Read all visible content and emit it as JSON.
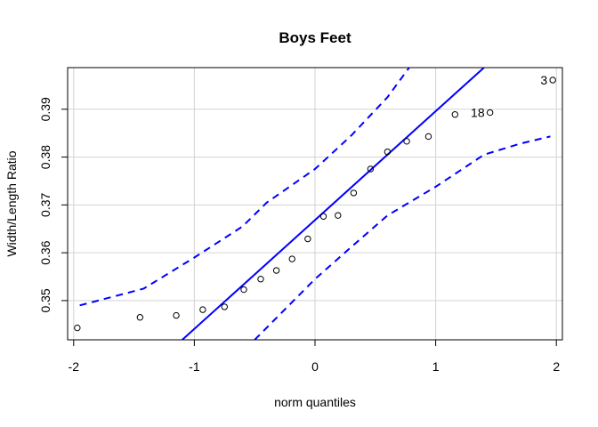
{
  "chart_data": {
    "type": "scatter",
    "title": "Boys Feet",
    "xlabel": "norm quantiles",
    "ylabel": "Width/Length Ratio",
    "xlim": [
      -2.05,
      2.05
    ],
    "ylim": [
      0.3418,
      0.3987
    ],
    "xticks": [
      -2,
      -1,
      0,
      1,
      2
    ],
    "xtick_labels": [
      "-2",
      "-1",
      "0",
      "1",
      "2"
    ],
    "yticks": [
      0.35,
      0.36,
      0.37,
      0.38,
      0.39
    ],
    "ytick_labels": [
      "0.35",
      "0.36",
      "0.37",
      "0.38",
      "0.39"
    ],
    "grid": true,
    "points": [
      {
        "x": -1.97,
        "y": 0.3443
      },
      {
        "x": -1.45,
        "y": 0.3465
      },
      {
        "x": -1.15,
        "y": 0.3469
      },
      {
        "x": -0.93,
        "y": 0.3481
      },
      {
        "x": -0.75,
        "y": 0.3487
      },
      {
        "x": -0.59,
        "y": 0.3523
      },
      {
        "x": -0.45,
        "y": 0.3545
      },
      {
        "x": -0.32,
        "y": 0.3563
      },
      {
        "x": -0.19,
        "y": 0.3587
      },
      {
        "x": -0.06,
        "y": 0.3629
      },
      {
        "x": 0.07,
        "y": 0.3676
      },
      {
        "x": 0.19,
        "y": 0.3678
      },
      {
        "x": 0.32,
        "y": 0.3725
      },
      {
        "x": 0.46,
        "y": 0.3775
      },
      {
        "x": 0.6,
        "y": 0.3811
      },
      {
        "x": 0.76,
        "y": 0.3833
      },
      {
        "x": 0.94,
        "y": 0.3843
      },
      {
        "x": 1.16,
        "y": 0.3889
      },
      {
        "x": 1.45,
        "y": 0.3893
      },
      {
        "x": 1.97,
        "y": 0.3961
      }
    ],
    "point_labels": [
      {
        "text": "3",
        "x": 1.97,
        "y": 0.3961
      },
      {
        "text": "18",
        "x": 1.45,
        "y": 0.3893
      }
    ],
    "reference_line": {
      "color": "#0000ff",
      "points": [
        [
          -1.1,
          0.3418
        ],
        [
          1.4,
          0.3987
        ]
      ]
    },
    "envelope_upper": {
      "color": "#0000ff",
      "dashed": true,
      "points": [
        [
          -1.95,
          0.349
        ],
        [
          -1.42,
          0.3525
        ],
        [
          -1.0,
          0.359
        ],
        [
          -0.6,
          0.3655
        ],
        [
          -0.4,
          0.3705
        ],
        [
          0.0,
          0.3775
        ],
        [
          0.3,
          0.3845
        ],
        [
          0.6,
          0.3925
        ],
        [
          0.78,
          0.3987
        ]
      ]
    },
    "envelope_lower": {
      "color": "#0000ff",
      "dashed": true,
      "points": [
        [
          -0.5,
          0.3418
        ],
        [
          0.0,
          0.3545
        ],
        [
          0.3,
          0.3612
        ],
        [
          0.6,
          0.3678
        ],
        [
          1.0,
          0.3738
        ],
        [
          1.4,
          0.3805
        ],
        [
          1.7,
          0.3828
        ],
        [
          1.95,
          0.3843
        ]
      ]
    }
  }
}
